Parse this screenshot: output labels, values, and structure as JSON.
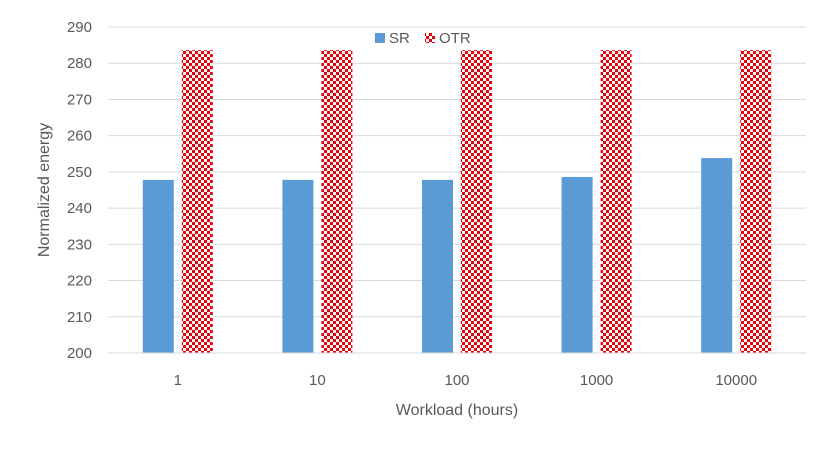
{
  "chart_data": {
    "type": "bar",
    "categories": [
      "1",
      "10",
      "100",
      "1000",
      "10000"
    ],
    "series": [
      {
        "name": "SR",
        "values": [
          247.8,
          247.8,
          247.8,
          248.6,
          253.8
        ],
        "color": "#5b9bd5",
        "pattern": "solid"
      },
      {
        "name": "OTR",
        "values": [
          283.6,
          283.6,
          283.6,
          283.6,
          283.6
        ],
        "color": "#e8000b",
        "pattern": "checkerboard"
      }
    ],
    "title": "",
    "xlabel": "Workload (hours)",
    "ylabel": "Normalized energy",
    "ylim": [
      200,
      290
    ],
    "yticks": [
      200,
      210,
      220,
      230,
      240,
      250,
      260,
      270,
      280,
      290
    ],
    "grid": true,
    "legend": "top-center"
  }
}
